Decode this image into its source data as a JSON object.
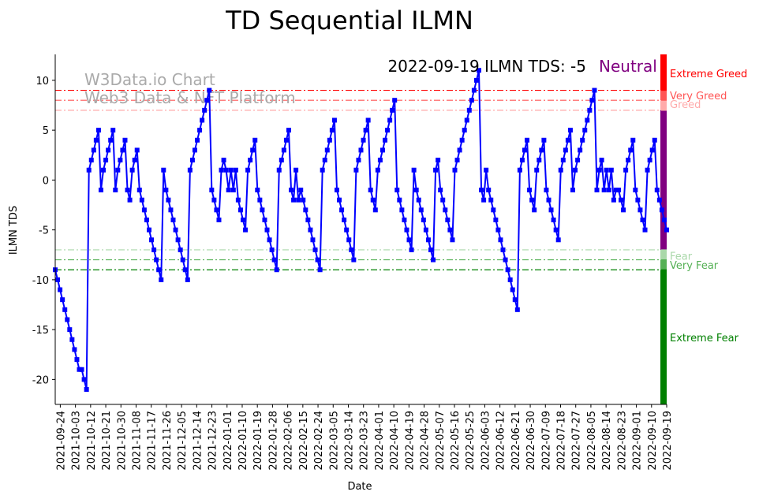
{
  "chart_data": {
    "type": "line",
    "title": "TD Sequential ILMN",
    "xlabel": "Date",
    "ylabel": "ILMN TDS",
    "xlim": [
      "2021-09-21",
      "2022-09-19"
    ],
    "ylim": [
      -22.5,
      12.6
    ],
    "yticks": [
      10,
      5,
      0,
      -5,
      -10,
      -15,
      -20
    ],
    "xticks": [
      "2021-09-24",
      "2021-10-03",
      "2021-10-12",
      "2021-10-21",
      "2021-10-30",
      "2021-11-08",
      "2021-11-17",
      "2021-11-26",
      "2021-12-05",
      "2021-12-14",
      "2021-12-23",
      "2022-01-01",
      "2022-01-10",
      "2022-01-19",
      "2022-01-28",
      "2022-02-06",
      "2022-02-15",
      "2022-02-24",
      "2022-03-05",
      "2022-03-14",
      "2022-03-23",
      "2022-04-01",
      "2022-04-10",
      "2022-04-19",
      "2022-04-28",
      "2022-05-07",
      "2022-05-16",
      "2022-05-25",
      "2022-06-03",
      "2022-06-12",
      "2022-06-21",
      "2022-06-30",
      "2022-07-09",
      "2022-07-18",
      "2022-07-27",
      "2022-08-05",
      "2022-08-14",
      "2022-08-23",
      "2022-09-01",
      "2022-09-10",
      "2022-09-19"
    ],
    "series": [
      {
        "name": "ILMN TDS",
        "color": "#0000ff",
        "start": "2021-09-21",
        "end": "2022-09-19",
        "values": [
          -9,
          -10,
          -11,
          -12,
          -13,
          -14,
          -15,
          -16,
          -17,
          -18,
          -19,
          -19,
          -20,
          -21,
          1,
          2,
          3,
          4,
          5,
          -1,
          1,
          2,
          3,
          4,
          5,
          -1,
          1,
          2,
          3,
          4,
          -1,
          -2,
          1,
          2,
          3,
          -1,
          -2,
          -3,
          -4,
          -5,
          -6,
          -7,
          -8,
          -9,
          -10,
          1,
          -1,
          -2,
          -3,
          -4,
          -5,
          -6,
          -7,
          -8,
          -9,
          -10,
          1,
          2,
          3,
          4,
          5,
          6,
          7,
          8,
          9,
          -1,
          -2,
          -3,
          -4,
          1,
          2,
          1,
          -1,
          1,
          -1,
          1,
          -2,
          -3,
          -4,
          -5,
          1,
          2,
          3,
          4,
          -1,
          -2,
          -3,
          -4,
          -5,
          -6,
          -7,
          -8,
          -9,
          1,
          2,
          3,
          4,
          5,
          -1,
          -2,
          1,
          -2,
          -1,
          -2,
          -3,
          -4,
          -5,
          -6,
          -7,
          -8,
          -9,
          1,
          2,
          3,
          4,
          5,
          6,
          -1,
          -2,
          -3,
          -4,
          -5,
          -6,
          -7,
          -8,
          1,
          2,
          3,
          4,
          5,
          6,
          -1,
          -2,
          -3,
          1,
          2,
          3,
          4,
          5,
          6,
          7,
          8,
          -1,
          -2,
          -3,
          -4,
          -5,
          -6,
          -7,
          1,
          -1,
          -2,
          -3,
          -4,
          -5,
          -6,
          -7,
          -8,
          1,
          2,
          -1,
          -2,
          -3,
          -4,
          -5,
          -6,
          1,
          2,
          3,
          4,
          5,
          6,
          7,
          8,
          9,
          10,
          11,
          -1,
          -2,
          1,
          -1,
          -2,
          -3,
          -4,
          -5,
          -6,
          -7,
          -8,
          -9,
          -10,
          -11,
          -12,
          -13,
          1,
          2,
          3,
          4,
          -1,
          -2,
          -3,
          1,
          2,
          3,
          4,
          -1,
          -2,
          -3,
          -4,
          -5,
          -6,
          1,
          2,
          3,
          4,
          5,
          -1,
          1,
          2,
          3,
          4,
          5,
          6,
          7,
          8,
          9,
          -1,
          1,
          2,
          -1,
          1,
          -1,
          1,
          -2,
          -1,
          -1,
          -2,
          -3,
          1,
          2,
          3,
          4,
          -1,
          -2,
          -3,
          -4,
          -5,
          1,
          2,
          3,
          4,
          -1,
          -2,
          -3,
          -4,
          -5
        ]
      }
    ],
    "thresholds": [
      {
        "value": 9,
        "color": "#ff0000"
      },
      {
        "value": 8,
        "color": "#ff5555"
      },
      {
        "value": 7,
        "color": "#ffaaaa"
      },
      {
        "value": -7,
        "color": "#aad8aa"
      },
      {
        "value": -8,
        "color": "#55b055"
      },
      {
        "value": -9,
        "color": "#008000"
      }
    ],
    "zones": [
      {
        "label": "Extreme Greed",
        "from": 9,
        "to": 12.6,
        "color": "#ff0000",
        "label_at": 10.7
      },
      {
        "label": "Very Greed",
        "from": 8,
        "to": 9,
        "color": "#ff5555",
        "label_at": 8.5
      },
      {
        "label": "Greed",
        "from": 7,
        "to": 8,
        "color": "#ffaaaa",
        "label_at": 7.6
      },
      {
        "label": "",
        "from": -7,
        "to": 7,
        "color": "#800080",
        "label_at": 0
      },
      {
        "label": "Fear",
        "from": -8,
        "to": -7,
        "color": "#aad8aa",
        "label_at": -7.6
      },
      {
        "label": "Very Fear",
        "from": -9,
        "to": -8,
        "color": "#55b055",
        "label_at": -8.5
      },
      {
        "label": "Extreme Fear",
        "from": -22.5,
        "to": -9,
        "color": "#008000",
        "label_at": -15.8
      }
    ],
    "annotation": {
      "text": "2022-09-19 ILMN TDS: -5",
      "status": "Neutral",
      "status_color": "#800080"
    },
    "watermark": {
      "line1": "W3Data.io Chart",
      "line2": "Web3 Data & NFT Platform"
    }
  }
}
